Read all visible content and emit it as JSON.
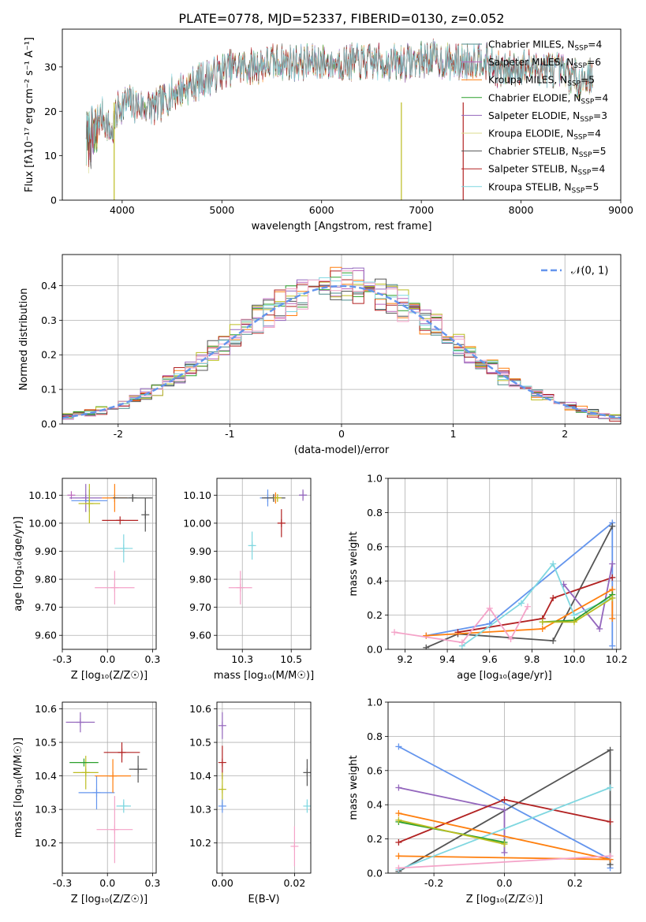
{
  "figure_title": "PLATE=0778, MJD=52337, FIBERID=0130, z=0.052",
  "model_colors": [
    "#1f77b4",
    "#9467bd",
    "#ff7f0e",
    "#2ca02c",
    "#9467bd",
    "#bcbd22",
    "#555555",
    "#b22222",
    "#17becf"
  ],
  "chart_data": [
    {
      "id": "spectrum",
      "type": "line",
      "title": "PLATE=0778, MJD=52337, FIBERID=0130, z=0.052",
      "xlabel": "wavelength [Angstrom, rest frame]",
      "ylabel": "Flux [fλ10⁻¹⁷ erg cm⁻² s⁻¹ A⁻¹]",
      "xlim": [
        3400,
        9000
      ],
      "ylim": [
        0,
        38.5
      ],
      "xticks": [
        4000,
        5000,
        6000,
        7000,
        8000,
        9000
      ],
      "yticks": [
        0,
        10,
        20,
        30
      ],
      "legend_position": "top-right",
      "legend": [
        {
          "name": "Chabrier MILES",
          "nssp": "N",
          "sub": "SSP",
          "value": "=4"
        },
        {
          "name": "Salpeter MILES",
          "nssp": "N",
          "sub": "SSP",
          "value": "=6"
        },
        {
          "name": "Kroupa MILES",
          "nssp": "N",
          "sub": "SSP",
          "value": "=5"
        },
        {
          "name": "Chabrier ELODIE",
          "nssp": "N",
          "sub": "SSP",
          "value": "=4"
        },
        {
          "name": "Salpeter ELODIE",
          "nssp": "N",
          "sub": "SSP",
          "value": "=3"
        },
        {
          "name": "Kroupa ELODIE",
          "nssp": "N",
          "sub": "SSP",
          "value": "=4"
        },
        {
          "name": "Chabrier STELIB",
          "nssp": "N",
          "sub": "SSP",
          "value": "=5"
        },
        {
          "name": "Salpeter STELIB",
          "nssp": "N",
          "sub": "SSP",
          "value": "=4"
        },
        {
          "name": "Kroupa STELIB",
          "nssp": "N",
          "sub": "SSP",
          "value": "=5"
        }
      ],
      "legend_colors": [
        "#4c8c8c",
        "#bb66bb",
        "#ff7f0e",
        "#2ca02c",
        "#9467bd",
        "#dbdb8d",
        "#555555",
        "#b22222",
        "#7fd7e0"
      ],
      "continuum_x": [
        3650,
        3800,
        3900,
        3960,
        4050,
        4200,
        4350,
        4500,
        4700,
        4900,
        5100,
        5300,
        5500,
        5700,
        5900,
        6100,
        6300,
        6500,
        6700,
        6900,
        7100,
        7300,
        7400,
        7600,
        7800,
        8000,
        8200,
        8400,
        8600,
        8700
      ],
      "continuum_y": [
        16,
        19,
        15,
        21,
        22,
        21,
        21,
        24,
        26,
        28,
        30,
        30,
        31,
        31,
        31,
        31,
        31,
        31,
        31,
        31,
        32,
        31,
        31,
        32,
        29,
        30,
        30,
        29,
        27,
        28
      ],
      "dropouts": [
        {
          "x": 3920,
          "y": 0
        },
        {
          "x": 6800,
          "y": 0
        },
        {
          "x": 7420,
          "y": 0
        }
      ]
    },
    {
      "id": "residuals",
      "type": "histogram",
      "xlabel": "(data-model)/error",
      "ylabel": "Normed distribution",
      "xlim": [
        -2.5,
        2.5
      ],
      "ylim": [
        0,
        0.49
      ],
      "xticks": [
        -2,
        -1,
        0,
        1,
        2
      ],
      "yticks": [
        0.0,
        0.1,
        0.2,
        0.3,
        0.4
      ],
      "bin_width": 0.1,
      "legend_position": "top-right",
      "gaussian_label": "𝒩(0, 1)",
      "gaussian_color": "#6495ed",
      "series_colors": [
        "#4c8c8c",
        "#bb66bb",
        "#ff7f0e",
        "#2ca02c",
        "#9467bd",
        "#bcbd22",
        "#555555",
        "#b22222",
        "#7fd7e0",
        "#f4a3c8"
      ]
    },
    {
      "id": "age_vs_Z",
      "type": "errorbar",
      "xlabel": "Z [log₁₀(Z/Z☉)]",
      "ylabel": "age  [log₁₀(age/yr)]",
      "xlim": [
        -0.25,
        0.27
      ],
      "ylim": [
        9.55,
        10.16
      ],
      "xticks": [
        -0.25,
        0.0,
        0.25
      ],
      "yticks": [
        9.6,
        9.7,
        9.8,
        9.9,
        10.0,
        10.1
      ],
      "points": [
        {
          "x": -0.2,
          "xerr": 0.0,
          "y": 10.1,
          "yerr": 0.0,
          "color": "#bb66bb"
        },
        {
          "x": -0.12,
          "xerr": 0.09,
          "y": 10.09,
          "yerr": 0.05,
          "color": "#9467bd"
        },
        {
          "x": -0.1,
          "xerr": 0.1,
          "y": 10.08,
          "yerr": 0.04,
          "color": "#6495ed"
        },
        {
          "x": -0.1,
          "xerr": 0.06,
          "y": 10.07,
          "yerr": 0.07,
          "color": "#bcbd22"
        },
        {
          "x": 0.04,
          "xerr": 0.07,
          "y": 10.09,
          "yerr": 0.05,
          "color": "#ff7f0e"
        },
        {
          "x": 0.14,
          "xerr": 0.11,
          "y": 10.09,
          "yerr": 0.01,
          "color": "#555555"
        },
        {
          "x": 0.07,
          "xerr": 0.1,
          "y": 10.01,
          "yerr": 0.0,
          "color": "#b22222"
        },
        {
          "x": 0.21,
          "xerr": 0.0,
          "y": 10.03,
          "yerr": 0.06,
          "color": "#555555"
        },
        {
          "x": 0.09,
          "xerr": 0.05,
          "y": 9.91,
          "yerr": 0.05,
          "color": "#7fd7e0"
        },
        {
          "x": 0.04,
          "xerr": 0.11,
          "y": 9.77,
          "yerr": 0.06,
          "color": "#f4a3c8"
        }
      ]
    },
    {
      "id": "age_vs_mass",
      "type": "errorbar",
      "xlabel": "mass [log₁₀(M/M☉)]",
      "ylabel": "",
      "xlim": [
        10.12,
        10.6
      ],
      "ylim": [
        9.55,
        10.16
      ],
      "xticks": [
        10.25,
        10.5
      ],
      "yticks": [
        9.6,
        9.7,
        9.8,
        9.9,
        10.0,
        10.1
      ],
      "points": [
        {
          "x": 10.38,
          "xerr": 0.04,
          "y": 10.09,
          "yerr": 0.03,
          "color": "#6495ed"
        },
        {
          "x": 10.42,
          "xerr": 0.03,
          "y": 10.09,
          "yerr": 0.02,
          "color": "#ff7f0e"
        },
        {
          "x": 10.41,
          "xerr": 0.06,
          "y": 10.09,
          "yerr": 0.01,
          "color": "#555555"
        },
        {
          "x": 10.43,
          "xerr": 0.02,
          "y": 10.09,
          "yerr": 0.01,
          "color": "#bcbd22"
        },
        {
          "x": 10.56,
          "xerr": 0.02,
          "y": 10.1,
          "yerr": 0.02,
          "color": "#9467bd"
        },
        {
          "x": 10.45,
          "xerr": 0.02,
          "y": 10.0,
          "yerr": 0.05,
          "color": "#b22222"
        },
        {
          "x": 10.3,
          "xerr": 0.01,
          "y": 9.92,
          "yerr": 0.05,
          "color": "#7fd7e0"
        },
        {
          "x": 10.24,
          "xerr": 0.06,
          "y": 9.77,
          "yerr": 0.06,
          "color": "#f4a3c8"
        }
      ]
    },
    {
      "id": "weight_vs_age",
      "type": "line",
      "xlabel": "age  [log₁₀(age/yr)]",
      "ylabel": "mass weight",
      "xlim": [
        9.12,
        10.22
      ],
      "ylim": [
        0,
        1.0
      ],
      "xticks": [
        9.2,
        9.4,
        9.6,
        9.8,
        10.0,
        10.2
      ],
      "yticks": [
        0.0,
        0.2,
        0.4,
        0.6,
        0.8,
        1.0
      ],
      "series": [
        {
          "color": "#6495ed",
          "x": [
            9.3,
            9.6,
            10.18,
            10.18
          ],
          "y": [
            0.08,
            0.15,
            0.74,
            0.02
          ]
        },
        {
          "color": "#555555",
          "x": [
            9.3,
            9.45,
            9.9,
            10.18
          ],
          "y": [
            0.01,
            0.09,
            0.05,
            0.72
          ]
        },
        {
          "color": "#b22222",
          "x": [
            9.45,
            9.85,
            9.9,
            10.18
          ],
          "y": [
            0.1,
            0.18,
            0.3,
            0.42
          ]
        },
        {
          "color": "#9467bd",
          "x": [
            9.95,
            10.12,
            10.18
          ],
          "y": [
            0.38,
            0.12,
            0.5
          ]
        },
        {
          "color": "#ff7f0e",
          "x": [
            9.3,
            9.85,
            10.18,
            10.18
          ],
          "y": [
            0.08,
            0.12,
            0.35,
            0.18
          ]
        },
        {
          "color": "#7fd7e0",
          "x": [
            9.47,
            9.75,
            9.9,
            10.0,
            10.18
          ],
          "y": [
            0.02,
            0.27,
            0.5,
            0.2,
            0.3
          ]
        },
        {
          "color": "#2ca02c",
          "x": [
            9.85,
            10.0,
            10.18
          ],
          "y": [
            0.16,
            0.17,
            0.32
          ]
        },
        {
          "color": "#bcbd22",
          "x": [
            9.85,
            10.0,
            10.18
          ],
          "y": [
            0.16,
            0.16,
            0.3
          ]
        },
        {
          "color": "#f4a3c8",
          "x": [
            9.15,
            9.47,
            9.6,
            9.7,
            9.78
          ],
          "y": [
            0.1,
            0.04,
            0.24,
            0.06,
            0.25
          ]
        }
      ]
    },
    {
      "id": "mass_vs_Z",
      "type": "errorbar",
      "xlabel": "Z [log₁₀(Z/Z☉)]",
      "ylabel": "mass [log₁₀(M/M☉)]",
      "xlim": [
        -0.25,
        0.27
      ],
      "ylim": [
        10.11,
        10.62
      ],
      "xticks": [
        -0.25,
        0.0,
        0.25
      ],
      "yticks": [
        10.2,
        10.3,
        10.4,
        10.5,
        10.6
      ],
      "points": [
        {
          "x": -0.15,
          "xerr": 0.08,
          "y": 10.56,
          "yerr": 0.03,
          "color": "#9467bd"
        },
        {
          "x": -0.12,
          "xerr": 0.07,
          "y": 10.41,
          "yerr": 0.05,
          "color": "#bcbd22"
        },
        {
          "x": -0.13,
          "xerr": 0.08,
          "y": 10.44,
          "yerr": 0.0,
          "color": "#2ca02c"
        },
        {
          "x": -0.06,
          "xerr": 0.1,
          "y": 10.35,
          "yerr": 0.05,
          "color": "#6495ed"
        },
        {
          "x": 0.03,
          "xerr": 0.1,
          "y": 10.4,
          "yerr": 0.05,
          "color": "#ff7f0e"
        },
        {
          "x": 0.08,
          "xerr": 0.1,
          "y": 10.47,
          "yerr": 0.03,
          "color": "#b22222"
        },
        {
          "x": 0.17,
          "xerr": 0.05,
          "y": 10.42,
          "yerr": 0.04,
          "color": "#555555"
        },
        {
          "x": 0.09,
          "xerr": 0.04,
          "y": 10.31,
          "yerr": 0.02,
          "color": "#7fd7e0"
        },
        {
          "x": 0.04,
          "xerr": 0.1,
          "y": 10.24,
          "yerr": 0.1,
          "color": "#f4a3c8"
        }
      ]
    },
    {
      "id": "mass_vs_ebv",
      "type": "errorbar",
      "xlabel": "E(B-V)",
      "ylabel": "",
      "xlim": [
        -0.0015,
        0.0245
      ],
      "ylim": [
        10.11,
        10.62
      ],
      "xticks": [
        0.0,
        0.02
      ],
      "yticks": [
        10.2,
        10.3,
        10.4,
        10.5,
        10.6
      ],
      "points": [
        {
          "x": 0.0,
          "xerr": 0.0,
          "y": 10.55,
          "yerr": 0.04,
          "color": "#9467bd"
        },
        {
          "x": 0.0,
          "xerr": 0.0,
          "y": 10.44,
          "yerr": 0.05,
          "color": "#b22222"
        },
        {
          "x": 0.0,
          "xerr": 0.0,
          "y": 10.36,
          "yerr": 0.05,
          "color": "#bcbd22"
        },
        {
          "x": 0.0,
          "xerr": 0.0,
          "y": 10.31,
          "yerr": 0.02,
          "color": "#6495ed"
        },
        {
          "x": 0.02,
          "xerr": 0.0,
          "y": 10.19,
          "yerr": 0.06,
          "color": "#f4a3c8"
        },
        {
          "x": 0.0235,
          "xerr": 0.0,
          "y": 10.41,
          "yerr": 0.04,
          "color": "#555555"
        },
        {
          "x": 0.0235,
          "xerr": 0.0,
          "y": 10.31,
          "yerr": 0.02,
          "color": "#7fd7e0"
        }
      ]
    },
    {
      "id": "weight_vs_Z",
      "type": "line",
      "xlabel": "Z [log₁₀(Z/Z☉)]",
      "ylabel": "mass weight",
      "xlim": [
        -0.33,
        0.33
      ],
      "ylim": [
        0,
        1.0
      ],
      "xticks": [
        -0.2,
        0.0,
        0.2
      ],
      "yticks": [
        0.0,
        0.2,
        0.4,
        0.6,
        0.8,
        1.0
      ],
      "series": [
        {
          "color": "#6495ed",
          "x": [
            -0.3,
            0.3,
            0.3
          ],
          "y": [
            0.74,
            0.08,
            0.03
          ]
        },
        {
          "color": "#555555",
          "x": [
            -0.3,
            0.3,
            0.3
          ],
          "y": [
            0.01,
            0.72,
            0.05
          ]
        },
        {
          "color": "#9467bd",
          "x": [
            -0.3,
            0.0,
            0.0
          ],
          "y": [
            0.5,
            0.37,
            0.12
          ]
        },
        {
          "color": "#b22222",
          "x": [
            -0.3,
            0.0,
            0.3
          ],
          "y": [
            0.18,
            0.43,
            0.3
          ]
        },
        {
          "color": "#ff7f0e",
          "x": [
            -0.3,
            0.3,
            -0.3
          ],
          "y": [
            0.35,
            0.08,
            0.1
          ]
        },
        {
          "color": "#7fd7e0",
          "x": [
            -0.3,
            0.3
          ],
          "y": [
            0.02,
            0.5
          ]
        },
        {
          "color": "#2ca02c",
          "x": [
            -0.3,
            0.0
          ],
          "y": [
            0.3,
            0.18
          ]
        },
        {
          "color": "#bcbd22",
          "x": [
            -0.3,
            0.0
          ],
          "y": [
            0.31,
            0.17
          ]
        },
        {
          "color": "#f4a3c8",
          "x": [
            -0.3,
            0.3
          ],
          "y": [
            0.03,
            0.1
          ]
        }
      ]
    }
  ]
}
